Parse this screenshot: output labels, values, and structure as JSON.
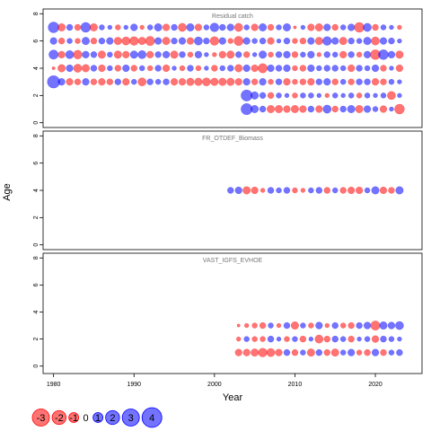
{
  "chart_data": {
    "type": "bubble",
    "xlabel": "Year",
    "ylabel": "Age",
    "xlim": [
      1978.7,
      2025.8
    ],
    "xticks": [
      1980,
      1990,
      2000,
      2010,
      2020
    ],
    "colors": {
      "positive": "#0000ff",
      "negative": "#ff0000"
    },
    "legend": {
      "values": [
        -3,
        -2,
        -1,
        0,
        1,
        2,
        3,
        4
      ]
    },
    "panels": [
      {
        "title": "Residual catch",
        "ylim": [
          -0.35,
          8.35
        ],
        "yticks": [
          0,
          2,
          4,
          6,
          8
        ],
        "x": [
          1980,
          1981,
          1982,
          1983,
          1984,
          1985,
          1986,
          1987,
          1988,
          1989,
          1990,
          1991,
          1992,
          1993,
          1994,
          1995,
          1996,
          1997,
          1998,
          1999,
          2000,
          2001,
          2002,
          2003,
          2004,
          2005,
          2006,
          2007,
          2008,
          2009,
          2010,
          2011,
          2012,
          2013,
          2014,
          2015,
          2016,
          2017,
          2018,
          2019,
          2020,
          2021,
          2022,
          2023
        ],
        "rows": [
          {
            "age": 7,
            "values": [
              1.2,
              -0.6,
              0.4,
              -0.4,
              1.0,
              -0.6,
              0.3,
              0.2,
              -0.3,
              0.2,
              0.5,
              -0.2,
              0.3,
              0.6,
              -0.5,
              0.4,
              -0.7,
              0.6,
              -0.5,
              0.3,
              0.8,
              0.4,
              0.5,
              -0.7,
              0.3,
              -0.5,
              0.6,
              -0.4,
              0.3,
              0.6,
              -0.1,
              0.2,
              -0.5,
              -0.6,
              0.5,
              -0.4,
              0.3,
              0.5,
              -1.0,
              0.7,
              -0.4,
              0.3,
              0.2,
              -0.2
            ]
          },
          {
            "age": 6,
            "values": [
              0.5,
              -0.4,
              0.3,
              -0.3,
              0.6,
              -0.4,
              0.4,
              0.5,
              -0.6,
              -0.7,
              -0.8,
              -0.6,
              -0.9,
              0.5,
              -0.6,
              0.4,
              0.5,
              -0.5,
              0.7,
              0.4,
              -0.8,
              0.5,
              -0.3,
              -0.9,
              0.5,
              0.3,
              0.4,
              -0.5,
              0.2,
              0.4,
              -0.3,
              -0.4,
              0.5,
              -0.6,
              0.8,
              0.5,
              -0.6,
              0.4,
              0.3,
              0.6,
              -0.7,
              0.5,
              0.4,
              0.2
            ]
          },
          {
            "age": 5,
            "values": [
              0.9,
              -0.5,
              0.7,
              -0.8,
              0.5,
              0.4,
              -0.6,
              0.3,
              -0.6,
              -0.5,
              0.6,
              0.7,
              -0.5,
              0.4,
              0.5,
              -0.6,
              0.4,
              -0.3,
              0.5,
              0.2,
              -0.2,
              -0.5,
              -0.6,
              0.4,
              -0.4,
              0.2,
              0.6,
              -0.3,
              0.4,
              0.5,
              -0.4,
              0.3,
              0.5,
              -0.2,
              0.4,
              0.3,
              -0.5,
              0.4,
              -0.3,
              0.5,
              -1.0,
              1.0,
              0.5,
              -0.6
            ]
          },
          {
            "age": 4,
            "values": [
              -0.1,
              -0.6,
              0.5,
              -0.7,
              -0.6,
              0.4,
              -0.5,
              0.3,
              -0.4,
              0.5,
              -0.4,
              0.3,
              -0.3,
              0.4,
              -0.5,
              0.2,
              -0.3,
              0.4,
              -0.3,
              0.2,
              -0.4,
              0.3,
              0.4,
              -0.6,
              0.5,
              -0.5,
              -0.9,
              0.5,
              0.4,
              0.5,
              -0.3,
              -0.4,
              0.5,
              0.3,
              0.4,
              0.4,
              0.3,
              -0.5,
              0.4,
              0.3,
              0.5,
              -0.4,
              0.2,
              -0.5
            ]
          },
          {
            "age": 3,
            "values": [
              1.6,
              0.5,
              -0.5,
              -0.4,
              0.5,
              -0.4,
              -0.5,
              -0.4,
              0.4,
              -0.5,
              0.3,
              -0.7,
              0.4,
              0.3,
              0.4,
              -0.5,
              -0.5,
              -0.6,
              -0.6,
              -0.7,
              -0.6,
              -0.6,
              -0.6,
              -0.5,
              0.5,
              -0.4,
              0.5,
              -0.3,
              0.4,
              -0.5,
              -0.3,
              -0.4,
              -0.5,
              0.4,
              0.5,
              -0.4,
              0.3,
              -0.4,
              0.4,
              0.4,
              -0.5,
              -0.4,
              0.3,
              0.2
            ]
          },
          {
            "age": 2,
            "values": [
              null,
              null,
              null,
              null,
              null,
              null,
              null,
              null,
              null,
              null,
              null,
              null,
              null,
              null,
              null,
              null,
              null,
              null,
              null,
              null,
              null,
              null,
              null,
              null,
              1.3,
              0.6,
              0.4,
              -0.4,
              0.3,
              0.2,
              -0.3,
              0.3,
              0.3,
              0.2,
              -0.2,
              0.3,
              0.2,
              0.3,
              -0.3,
              0.3,
              0.2,
              0.3,
              -0.7,
              0.2
            ]
          },
          {
            "age": 1,
            "values": [
              null,
              null,
              null,
              null,
              null,
              null,
              null,
              null,
              null,
              null,
              null,
              null,
              null,
              null,
              null,
              null,
              null,
              null,
              null,
              null,
              null,
              null,
              null,
              null,
              1.3,
              0.6,
              0.4,
              -0.6,
              -0.6,
              -0.5,
              -0.6,
              -0.5,
              0.4,
              -0.5,
              0.7,
              -0.4,
              0.4,
              0.6,
              -0.6,
              0.5,
              0.3,
              -0.5,
              0.2,
              -1.0
            ]
          }
        ]
      },
      {
        "title": "FR_OTDEF_Biomass",
        "ylim": [
          -0.35,
          8.35
        ],
        "yticks": [
          0,
          2,
          4,
          6,
          8
        ],
        "x": [
          2002,
          2003,
          2004,
          2005,
          2006,
          2007,
          2008,
          2009,
          2010,
          2011,
          2012,
          2013,
          2014,
          2015,
          2016,
          2017,
          2018,
          2019,
          2020,
          2021,
          2022,
          2023
        ],
        "rows": [
          {
            "age": 4,
            "values": [
              0.4,
              0.5,
              -0.6,
              -0.5,
              -0.2,
              0.4,
              0.3,
              0.4,
              -0.3,
              -0.2,
              0.3,
              0.4,
              -0.4,
              0.3,
              -0.4,
              -0.5,
              -0.5,
              0.3,
              0.6,
              -0.5,
              -0.4,
              0.6
            ]
          }
        ]
      },
      {
        "title": "VAST_IGFS_EVHOE",
        "ylim": [
          -0.55,
          8.35
        ],
        "yticks": [
          0,
          2,
          4,
          6,
          8
        ],
        "x": [
          2003,
          2004,
          2005,
          2006,
          2007,
          2008,
          2009,
          2010,
          2011,
          2012,
          2013,
          2014,
          2015,
          2016,
          2017,
          2018,
          2019,
          2020,
          2021,
          2022,
          2023
        ],
        "rows": [
          {
            "age": 3,
            "values": [
              -0.1,
              -0.2,
              -0.3,
              -0.4,
              0.3,
              -0.2,
              0.4,
              -0.6,
              0.3,
              -0.3,
              0.5,
              -0.2,
              0.4,
              -0.3,
              -0.4,
              0.4,
              0.5,
              -0.9,
              0.6,
              0.5,
              0.7
            ]
          },
          {
            "age": 2,
            "values": [
              -0.2,
              0.3,
              -0.3,
              -0.3,
              0.4,
              0.2,
              -0.3,
              0.3,
              -0.4,
              0.2,
              -0.7,
              -0.4,
              0.4,
              0.3,
              -0.4,
              0.2,
              0.3,
              -0.5,
              0.4,
              0.3,
              0.2
            ]
          },
          {
            "age": 1,
            "values": [
              -0.5,
              -0.5,
              -0.6,
              -0.8,
              -0.7,
              -0.5,
              0.4,
              -0.4,
              0.3,
              -0.6,
              0.4,
              -0.4,
              -0.6,
              0.3,
              0.5,
              -0.3,
              -0.4,
              0.5,
              -0.4,
              0.3,
              0.4
            ]
          }
        ]
      }
    ]
  }
}
